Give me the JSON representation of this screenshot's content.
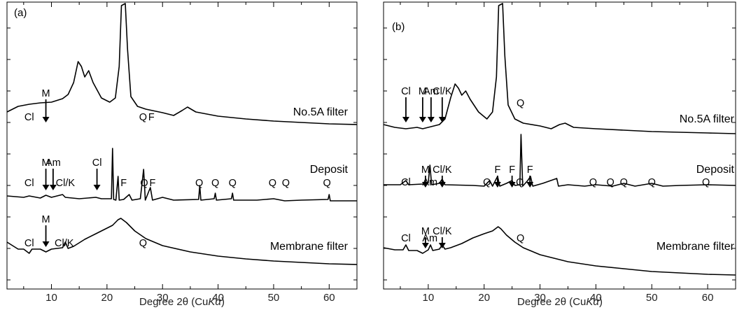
{
  "figure": {
    "xlabel_main": "Degree 2θ (Cu",
    "xlabel_italic": "K",
    "xlabel_alpha": "α",
    "xlabel_end": ")",
    "colors": {
      "line": "#000000",
      "background": "#ffffff"
    }
  },
  "chart_data": [
    {
      "type": "line",
      "panel_label": "(a)",
      "xlim": [
        2,
        65
      ],
      "xticks": [
        10,
        20,
        30,
        40,
        50,
        60
      ],
      "xtick_labels": [
        "10",
        "20",
        "30",
        "40",
        "50",
        "60"
      ],
      "grid": false,
      "series": [
        {
          "name": "No.5A filter",
          "points": [
            [
              2,
              160
            ],
            [
              4,
              152
            ],
            [
              6,
              149
            ],
            [
              8,
              147
            ],
            [
              10,
              146
            ],
            [
              12,
              141
            ],
            [
              13,
              135
            ],
            [
              14,
              118
            ],
            [
              14.8,
              88
            ],
            [
              15.4,
              95
            ],
            [
              16,
              110
            ],
            [
              16.7,
              101
            ],
            [
              17.5,
              118
            ],
            [
              19,
              140
            ],
            [
              20.5,
              146
            ],
            [
              21.5,
              140
            ],
            [
              22.2,
              95
            ],
            [
              22.6,
              8
            ],
            [
              23.3,
              5
            ],
            [
              23.7,
              70
            ],
            [
              24.3,
              138
            ],
            [
              25.5,
              152
            ],
            [
              27,
              156
            ],
            [
              30,
              161
            ],
            [
              32,
              165
            ],
            [
              33.5,
              158
            ],
            [
              34.5,
              153
            ],
            [
              36,
              160
            ],
            [
              40,
              166
            ],
            [
              45,
              170
            ],
            [
              50,
              173
            ],
            [
              55,
              175
            ],
            [
              60,
              177
            ],
            [
              65,
              178
            ]
          ],
          "annotations": [
            {
              "text": "Cl",
              "x": 6
            },
            {
              "text": "M",
              "x": 9,
              "arrow": true
            },
            {
              "text": "Q",
              "x": 26.5
            },
            {
              "text": "F",
              "x": 28
            }
          ]
        },
        {
          "name": "Deposit",
          "points": [
            [
              2,
              280
            ],
            [
              5,
              282
            ],
            [
              6,
              280
            ],
            [
              8,
              283
            ],
            [
              9,
              279
            ],
            [
              10,
              282
            ],
            [
              12,
              278
            ],
            [
              12.5,
              282
            ],
            [
              15,
              284
            ],
            [
              18,
              282
            ],
            [
              19,
              284
            ],
            [
              20.8,
              284
            ],
            [
              21,
              212
            ],
            [
              21.2,
              285
            ],
            [
              21.6,
              286
            ],
            [
              22,
              252
            ],
            [
              22.2,
              286
            ],
            [
              23,
              285
            ],
            [
              24,
              278
            ],
            [
              24.5,
              286
            ],
            [
              26,
              284
            ],
            [
              26.6,
              242
            ],
            [
              26.9,
              286
            ],
            [
              27.8,
              268
            ],
            [
              28.2,
              286
            ],
            [
              30,
              282
            ],
            [
              32,
              286
            ],
            [
              36.5,
              285
            ],
            [
              36.7,
              265
            ],
            [
              36.9,
              286
            ],
            [
              39.3,
              284
            ],
            [
              39.5,
              276
            ],
            [
              39.7,
              286
            ],
            [
              42.4,
              284
            ],
            [
              42.6,
              276
            ],
            [
              42.8,
              286
            ],
            [
              47,
              286
            ],
            [
              50,
              284
            ],
            [
              52,
              287
            ],
            [
              55,
              286
            ],
            [
              59.8,
              285
            ],
            [
              60,
              278
            ],
            [
              60.2,
              287
            ],
            [
              65,
              287
            ]
          ],
          "annotations": [
            {
              "text": "Cl",
              "x": 6
            },
            {
              "text": "M",
              "x": 9,
              "arrow": true
            },
            {
              "text": "Am",
              "x": 10.3,
              "arrow": true
            },
            {
              "text": "Cl/K",
              "x": 12.5
            },
            {
              "text": "Cl",
              "x": 18.2,
              "arrow": true
            },
            {
              "text": "F",
              "x": 23
            },
            {
              "text": "Q",
              "x": 26.7
            },
            {
              "text": "F",
              "x": 28.2
            },
            {
              "text": "Q",
              "x": 36.6
            },
            {
              "text": "Q",
              "x": 39.5
            },
            {
              "text": "Q",
              "x": 42.6
            },
            {
              "text": "Q",
              "x": 49.8
            },
            {
              "text": "Q",
              "x": 52.2
            },
            {
              "text": "Q",
              "x": 59.6
            }
          ]
        },
        {
          "name": "Membrane filter",
          "points": [
            [
              2,
              346
            ],
            [
              4,
              356
            ],
            [
              5,
              356
            ],
            [
              6,
              362
            ],
            [
              6.5,
              356
            ],
            [
              8,
              356
            ],
            [
              9,
              360
            ],
            [
              10,
              356
            ],
            [
              12,
              354
            ],
            [
              12.5,
              346
            ],
            [
              13,
              355
            ],
            [
              14,
              352
            ],
            [
              16,
              342
            ],
            [
              18,
              334
            ],
            [
              20,
              326
            ],
            [
              21,
              322
            ],
            [
              22,
              314
            ],
            [
              22.5,
              312
            ],
            [
              23.5,
              318
            ],
            [
              25,
              330
            ],
            [
              27,
              341
            ],
            [
              30,
              351
            ],
            [
              35,
              360
            ],
            [
              40,
              366
            ],
            [
              45,
              370
            ],
            [
              50,
              373
            ],
            [
              55,
              375
            ],
            [
              60,
              377
            ],
            [
              65,
              378
            ]
          ],
          "annotations": [
            {
              "text": "Cl",
              "x": 6
            },
            {
              "text": "M",
              "x": 9,
              "arrow": true
            },
            {
              "text": "Cl/K",
              "x": 12.3
            },
            {
              "text": "Q",
              "x": 26.5
            }
          ]
        }
      ]
    },
    {
      "type": "line",
      "panel_label": "(b)",
      "xlim": [
        2,
        65
      ],
      "xticks": [
        10,
        20,
        30,
        40,
        50,
        60
      ],
      "xtick_labels": [
        "10",
        "20",
        "30",
        "40",
        "50",
        "60"
      ],
      "grid": false,
      "series": [
        {
          "name": "No.5A filter",
          "points": [
            [
              2,
              178
            ],
            [
              4,
              182
            ],
            [
              6,
              184
            ],
            [
              8,
              182
            ],
            [
              9,
              184
            ],
            [
              10,
              182
            ],
            [
              12,
              178
            ],
            [
              13,
              170
            ],
            [
              14,
              140
            ],
            [
              14.8,
              120
            ],
            [
              15.4,
              126
            ],
            [
              16,
              136
            ],
            [
              16.7,
              130
            ],
            [
              17.5,
              142
            ],
            [
              19,
              160
            ],
            [
              20.5,
              170
            ],
            [
              21.5,
              160
            ],
            [
              22.2,
              110
            ],
            [
              22.6,
              8
            ],
            [
              23.3,
              5
            ],
            [
              23.7,
              80
            ],
            [
              24.3,
              150
            ],
            [
              25.5,
              170
            ],
            [
              27,
              176
            ],
            [
              30,
              180
            ],
            [
              32,
              184
            ],
            [
              33.5,
              178
            ],
            [
              34.5,
              176
            ],
            [
              36,
              182
            ],
            [
              40,
              184
            ],
            [
              45,
              186
            ],
            [
              50,
              188
            ],
            [
              55,
              189
            ],
            [
              60,
              190
            ],
            [
              65,
              191
            ]
          ],
          "annotations": [
            {
              "text": "Cl",
              "x": 6,
              "arrow": true
            },
            {
              "text": "M",
              "x": 9,
              "arrow": true
            },
            {
              "text": "Am",
              "x": 10.5,
              "arrow": true
            },
            {
              "text": "Cl/K",
              "x": 12.5,
              "arrow": true
            },
            {
              "text": "Q",
              "x": 26.5
            }
          ]
        },
        {
          "name": "Deposit",
          "points": [
            [
              2,
              264
            ],
            [
              5,
              264
            ],
            [
              6,
              258
            ],
            [
              6.5,
              264
            ],
            [
              9,
              263
            ],
            [
              10,
              261
            ],
            [
              10.3,
              236
            ],
            [
              10.6,
              264
            ],
            [
              12,
              262
            ],
            [
              12.5,
              256
            ],
            [
              13,
              264
            ],
            [
              18,
              265
            ],
            [
              20,
              266
            ],
            [
              21,
              258
            ],
            [
              21.5,
              266
            ],
            [
              22.4,
              252
            ],
            [
              22.8,
              266
            ],
            [
              24,
              262
            ],
            [
              25,
              258
            ],
            [
              25.5,
              265
            ],
            [
              26.4,
              264
            ],
            [
              26.6,
              192
            ],
            [
              26.9,
              266
            ],
            [
              27.8,
              258
            ],
            [
              28.3,
              252
            ],
            [
              28.7,
              266
            ],
            [
              30.5,
              262
            ],
            [
              33,
              255
            ],
            [
              33.3,
              266
            ],
            [
              35,
              264
            ],
            [
              38,
              266
            ],
            [
              40,
              264
            ],
            [
              43,
              266
            ],
            [
              45,
              262
            ],
            [
              47,
              266
            ],
            [
              50,
              262
            ],
            [
              52,
              266
            ],
            [
              55,
              265
            ],
            [
              60,
              264
            ],
            [
              65,
              265
            ]
          ],
          "annotations": [
            {
              "text": "Cl",
              "x": 6
            },
            {
              "text": "M",
              "x": 9.5,
              "arrow": true
            },
            {
              "text": "Am",
              "x": 10.3
            },
            {
              "text": "Cl/K",
              "x": 12.5,
              "arrow": true
            },
            {
              "text": "Q",
              "x": 20.5
            },
            {
              "text": "F",
              "x": 22.4,
              "arrow": true
            },
            {
              "text": "F",
              "x": 25,
              "arrow": true
            },
            {
              "text": "Q",
              "x": 26.4
            },
            {
              "text": "F",
              "x": 28.2,
              "arrow": true
            },
            {
              "text": "Q",
              "x": 39.5
            },
            {
              "text": "Q",
              "x": 42.6
            },
            {
              "text": "Q",
              "x": 45
            },
            {
              "text": "Q",
              "x": 50
            },
            {
              "text": "Q",
              "x": 59.7
            }
          ]
        },
        {
          "name": "Membrane filter",
          "points": [
            [
              2,
              354
            ],
            [
              4,
              357
            ],
            [
              5.5,
              357
            ],
            [
              6,
              350
            ],
            [
              6.5,
              358
            ],
            [
              8,
              358
            ],
            [
              9,
              362
            ],
            [
              10,
              357
            ],
            [
              10.4,
              350
            ],
            [
              10.8,
              358
            ],
            [
              12,
              356
            ],
            [
              12.5,
              350
            ],
            [
              13,
              356
            ],
            [
              14,
              354
            ],
            [
              16,
              348
            ],
            [
              18,
              340
            ],
            [
              20,
              334
            ],
            [
              21.5,
              330
            ],
            [
              22.5,
              324
            ],
            [
              23,
              327
            ],
            [
              24,
              336
            ],
            [
              25.5,
              346
            ],
            [
              27,
              354
            ],
            [
              30,
              364
            ],
            [
              35,
              374
            ],
            [
              40,
              380
            ],
            [
              45,
              384
            ],
            [
              50,
              388
            ],
            [
              55,
              390
            ],
            [
              60,
              392
            ],
            [
              65,
              393
            ]
          ],
          "annotations": [
            {
              "text": "Cl",
              "x": 6
            },
            {
              "text": "M",
              "x": 9.5,
              "arrow": true
            },
            {
              "text": "Am",
              "x": 10.3
            },
            {
              "text": "Cl/K",
              "x": 12.5,
              "arrow": true
            },
            {
              "text": "Q",
              "x": 26.5
            }
          ]
        }
      ]
    }
  ]
}
